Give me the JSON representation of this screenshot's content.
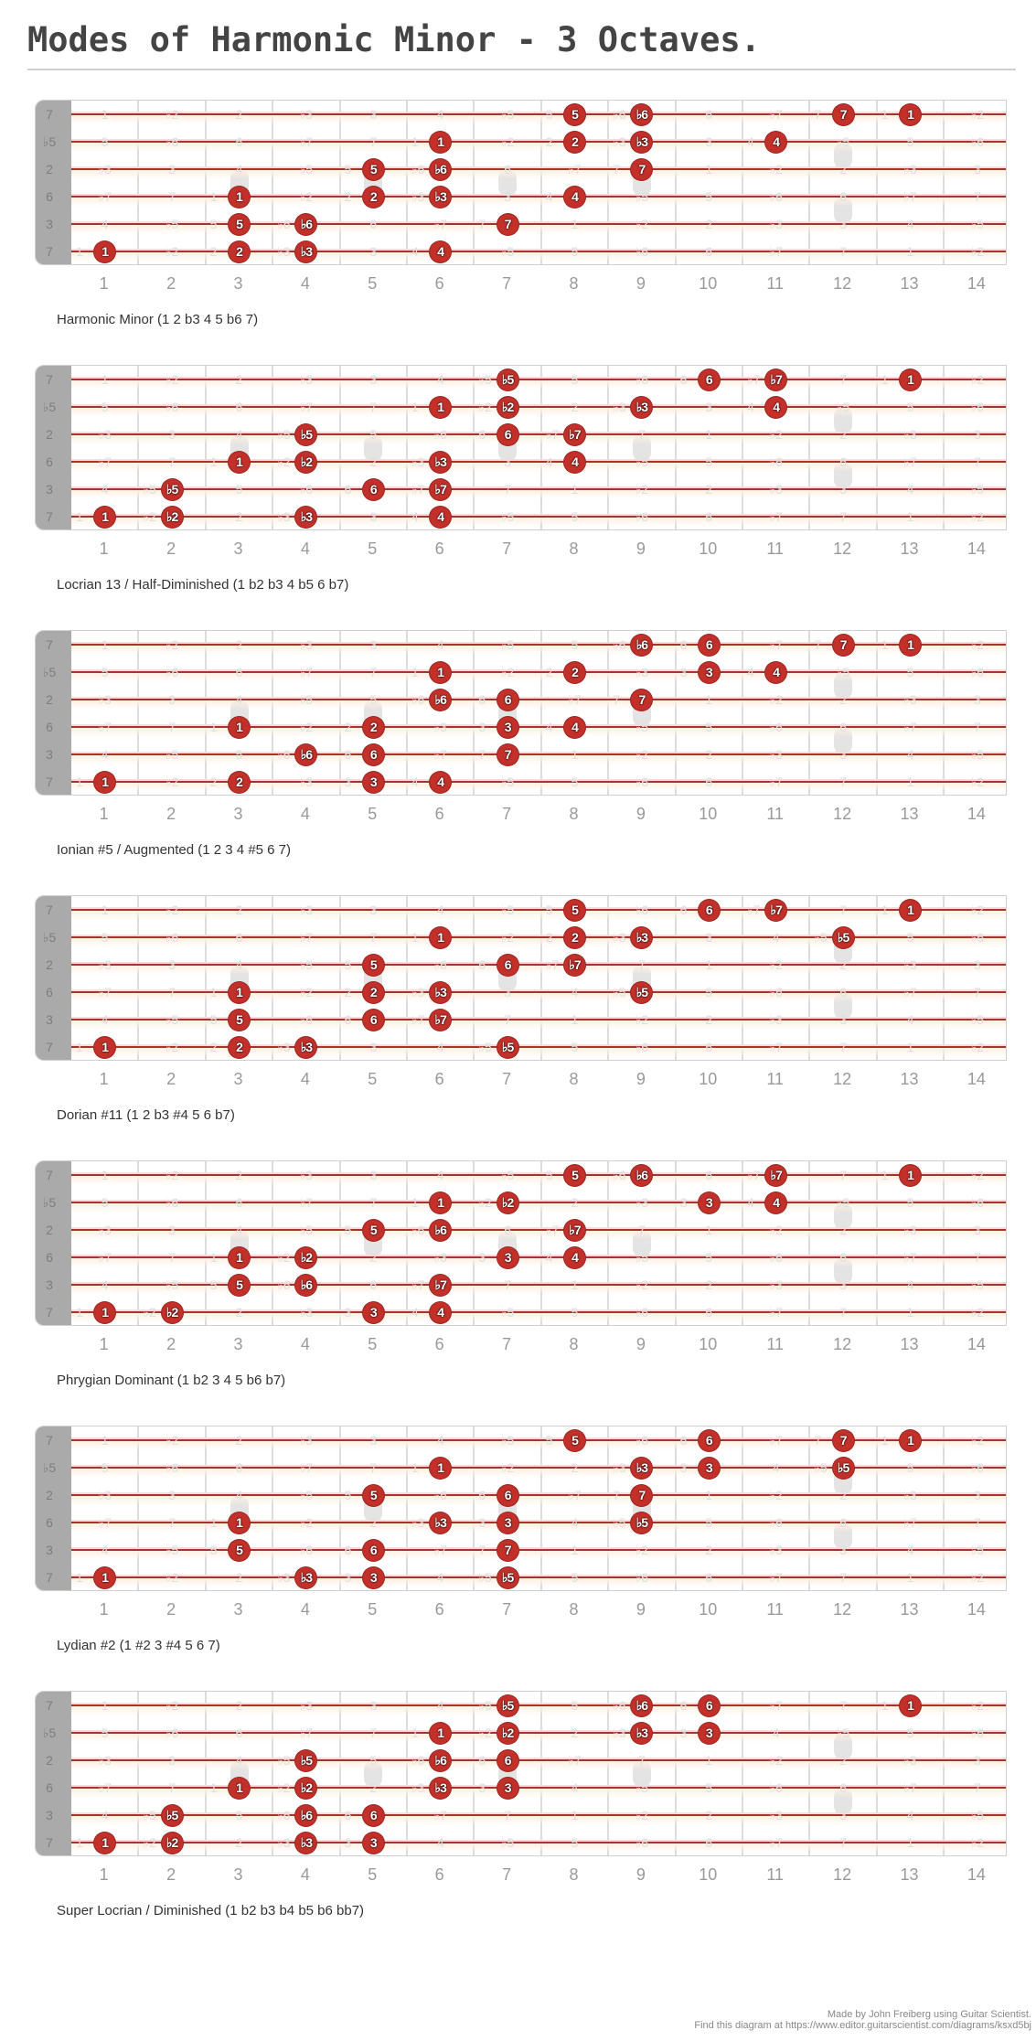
{
  "title": "Modes of Harmonic Minor - 3 Octaves.",
  "colors": {
    "dot": "#c3302a",
    "string": "#a8322c",
    "nut": "#aaaaaa",
    "fret": "#dcdcdc"
  },
  "nut_labels": [
    "7",
    "♭5",
    "2",
    "6",
    "3",
    "7"
  ],
  "fret_numbers": [
    "1",
    "2",
    "3",
    "4",
    "5",
    "6",
    "7",
    "8",
    "9",
    "10",
    "11",
    "12",
    "13",
    "14"
  ],
  "inlay_frets": [
    3,
    5,
    7,
    9,
    12
  ],
  "faint_labels": [
    [
      "1",
      "♭2",
      "2",
      "♭3",
      "3",
      "4",
      "♭5",
      "5",
      "♭6",
      "6",
      "♭7",
      "7",
      "1",
      "♭2"
    ],
    [
      "5",
      "♭6",
      "6",
      "♭7",
      "7",
      "1",
      "♭2",
      "2",
      "♭3",
      "3",
      "4",
      "♭5",
      "5",
      "♭6"
    ],
    [
      "♭3",
      "3",
      "4",
      "♭5",
      "5",
      "♭6",
      "6",
      "♭7",
      "7",
      "1",
      "♭2",
      "2",
      "♭3",
      "3"
    ],
    [
      "♭7",
      "7",
      "1",
      "♭2",
      "2",
      "♭3",
      "3",
      "4",
      "♭5",
      "5",
      "♭6",
      "6",
      "♭7",
      "7"
    ],
    [
      "4",
      "♭5",
      "5",
      "♭6",
      "6",
      "♭7",
      "7",
      "1",
      "♭2",
      "2",
      "♭3",
      "3",
      "4",
      "♭5"
    ],
    [
      "1",
      "♭2",
      "2",
      "♭3",
      "3",
      "4",
      "♭5",
      "5",
      "♭6",
      "6",
      "♭7",
      "7",
      "1",
      "♭2"
    ]
  ],
  "modes": [
    {
      "caption": "Harmonic Minor (1 2 b3 4 5 b6 7)",
      "notes": [
        {
          "s": 1,
          "f": 8,
          "label": "5"
        },
        {
          "s": 1,
          "f": 9,
          "label": "♭6"
        },
        {
          "s": 1,
          "f": 12,
          "label": "7"
        },
        {
          "s": 1,
          "f": 13,
          "label": "1"
        },
        {
          "s": 2,
          "f": 6,
          "label": "1"
        },
        {
          "s": 2,
          "f": 8,
          "label": "2"
        },
        {
          "s": 2,
          "f": 9,
          "label": "♭3"
        },
        {
          "s": 2,
          "f": 11,
          "label": "4"
        },
        {
          "s": 3,
          "f": 5,
          "label": "5"
        },
        {
          "s": 3,
          "f": 6,
          "label": "♭6"
        },
        {
          "s": 3,
          "f": 9,
          "label": "7"
        },
        {
          "s": 4,
          "f": 3,
          "label": "1"
        },
        {
          "s": 4,
          "f": 5,
          "label": "2"
        },
        {
          "s": 4,
          "f": 6,
          "label": "♭3"
        },
        {
          "s": 4,
          "f": 8,
          "label": "4"
        },
        {
          "s": 5,
          "f": 3,
          "label": "5"
        },
        {
          "s": 5,
          "f": 4,
          "label": "♭6"
        },
        {
          "s": 5,
          "f": 7,
          "label": "7"
        },
        {
          "s": 6,
          "f": 1,
          "label": "1"
        },
        {
          "s": 6,
          "f": 3,
          "label": "2"
        },
        {
          "s": 6,
          "f": 4,
          "label": "♭3"
        },
        {
          "s": 6,
          "f": 6,
          "label": "4"
        }
      ]
    },
    {
      "caption": "Locrian 13 / Half-Diminished (1 b2 b3 4 b5 6 b7)",
      "notes": [
        {
          "s": 1,
          "f": 7,
          "label": "♭5"
        },
        {
          "s": 1,
          "f": 10,
          "label": "6"
        },
        {
          "s": 1,
          "f": 11,
          "label": "♭7"
        },
        {
          "s": 1,
          "f": 13,
          "label": "1"
        },
        {
          "s": 2,
          "f": 6,
          "label": "1"
        },
        {
          "s": 2,
          "f": 7,
          "label": "♭2"
        },
        {
          "s": 2,
          "f": 9,
          "label": "♭3"
        },
        {
          "s": 2,
          "f": 11,
          "label": "4"
        },
        {
          "s": 3,
          "f": 4,
          "label": "♭5"
        },
        {
          "s": 3,
          "f": 7,
          "label": "6"
        },
        {
          "s": 3,
          "f": 8,
          "label": "♭7"
        },
        {
          "s": 4,
          "f": 3,
          "label": "1"
        },
        {
          "s": 4,
          "f": 4,
          "label": "♭2"
        },
        {
          "s": 4,
          "f": 6,
          "label": "♭3"
        },
        {
          "s": 4,
          "f": 8,
          "label": "4"
        },
        {
          "s": 5,
          "f": 2,
          "label": "♭5"
        },
        {
          "s": 5,
          "f": 5,
          "label": "6"
        },
        {
          "s": 5,
          "f": 6,
          "label": "♭7"
        },
        {
          "s": 6,
          "f": 1,
          "label": "1"
        },
        {
          "s": 6,
          "f": 2,
          "label": "♭2"
        },
        {
          "s": 6,
          "f": 4,
          "label": "♭3"
        },
        {
          "s": 6,
          "f": 6,
          "label": "4"
        }
      ]
    },
    {
      "caption": "Ionian #5 / Augmented (1 2 3 4 #5 6 7)",
      "notes": [
        {
          "s": 1,
          "f": 9,
          "label": "♭6"
        },
        {
          "s": 1,
          "f": 10,
          "label": "6"
        },
        {
          "s": 1,
          "f": 12,
          "label": "7"
        },
        {
          "s": 1,
          "f": 13,
          "label": "1"
        },
        {
          "s": 2,
          "f": 6,
          "label": "1"
        },
        {
          "s": 2,
          "f": 8,
          "label": "2"
        },
        {
          "s": 2,
          "f": 10,
          "label": "3"
        },
        {
          "s": 2,
          "f": 11,
          "label": "4"
        },
        {
          "s": 3,
          "f": 6,
          "label": "♭6"
        },
        {
          "s": 3,
          "f": 7,
          "label": "6"
        },
        {
          "s": 3,
          "f": 9,
          "label": "7"
        },
        {
          "s": 4,
          "f": 3,
          "label": "1"
        },
        {
          "s": 4,
          "f": 5,
          "label": "2"
        },
        {
          "s": 4,
          "f": 7,
          "label": "3"
        },
        {
          "s": 4,
          "f": 8,
          "label": "4"
        },
        {
          "s": 5,
          "f": 4,
          "label": "♭6"
        },
        {
          "s": 5,
          "f": 5,
          "label": "6"
        },
        {
          "s": 5,
          "f": 7,
          "label": "7"
        },
        {
          "s": 6,
          "f": 1,
          "label": "1"
        },
        {
          "s": 6,
          "f": 3,
          "label": "2"
        },
        {
          "s": 6,
          "f": 5,
          "label": "3"
        },
        {
          "s": 6,
          "f": 6,
          "label": "4"
        }
      ]
    },
    {
      "caption": "Dorian #11 (1 2 b3 #4 5 6 b7)",
      "notes": [
        {
          "s": 1,
          "f": 8,
          "label": "5"
        },
        {
          "s": 1,
          "f": 10,
          "label": "6"
        },
        {
          "s": 1,
          "f": 11,
          "label": "♭7"
        },
        {
          "s": 1,
          "f": 13,
          "label": "1"
        },
        {
          "s": 2,
          "f": 6,
          "label": "1"
        },
        {
          "s": 2,
          "f": 8,
          "label": "2"
        },
        {
          "s": 2,
          "f": 9,
          "label": "♭3"
        },
        {
          "s": 2,
          "f": 12,
          "label": "♭5"
        },
        {
          "s": 3,
          "f": 5,
          "label": "5"
        },
        {
          "s": 3,
          "f": 7,
          "label": "6"
        },
        {
          "s": 3,
          "f": 8,
          "label": "♭7"
        },
        {
          "s": 4,
          "f": 3,
          "label": "1"
        },
        {
          "s": 4,
          "f": 5,
          "label": "2"
        },
        {
          "s": 4,
          "f": 6,
          "label": "♭3"
        },
        {
          "s": 4,
          "f": 9,
          "label": "♭5"
        },
        {
          "s": 5,
          "f": 3,
          "label": "5"
        },
        {
          "s": 5,
          "f": 5,
          "label": "6"
        },
        {
          "s": 5,
          "f": 6,
          "label": "♭7"
        },
        {
          "s": 6,
          "f": 1,
          "label": "1"
        },
        {
          "s": 6,
          "f": 3,
          "label": "2"
        },
        {
          "s": 6,
          "f": 4,
          "label": "♭3"
        },
        {
          "s": 6,
          "f": 7,
          "label": "♭5"
        }
      ]
    },
    {
      "caption": "Phrygian Dominant (1 b2 3 4 5 b6 b7)",
      "notes": [
        {
          "s": 1,
          "f": 8,
          "label": "5"
        },
        {
          "s": 1,
          "f": 9,
          "label": "♭6"
        },
        {
          "s": 1,
          "f": 11,
          "label": "♭7"
        },
        {
          "s": 1,
          "f": 13,
          "label": "1"
        },
        {
          "s": 2,
          "f": 6,
          "label": "1"
        },
        {
          "s": 2,
          "f": 7,
          "label": "♭2"
        },
        {
          "s": 2,
          "f": 10,
          "label": "3"
        },
        {
          "s": 2,
          "f": 11,
          "label": "4"
        },
        {
          "s": 3,
          "f": 5,
          "label": "5"
        },
        {
          "s": 3,
          "f": 6,
          "label": "♭6"
        },
        {
          "s": 3,
          "f": 8,
          "label": "♭7"
        },
        {
          "s": 4,
          "f": 3,
          "label": "1"
        },
        {
          "s": 4,
          "f": 4,
          "label": "♭2"
        },
        {
          "s": 4,
          "f": 7,
          "label": "3"
        },
        {
          "s": 4,
          "f": 8,
          "label": "4"
        },
        {
          "s": 5,
          "f": 3,
          "label": "5"
        },
        {
          "s": 5,
          "f": 4,
          "label": "♭6"
        },
        {
          "s": 5,
          "f": 6,
          "label": "♭7"
        },
        {
          "s": 6,
          "f": 1,
          "label": "1"
        },
        {
          "s": 6,
          "f": 2,
          "label": "♭2"
        },
        {
          "s": 6,
          "f": 5,
          "label": "3"
        },
        {
          "s": 6,
          "f": 6,
          "label": "4"
        }
      ]
    },
    {
      "caption": "Lydian #2 (1 #2 3 #4 5 6 7)",
      "notes": [
        {
          "s": 1,
          "f": 8,
          "label": "5"
        },
        {
          "s": 1,
          "f": 10,
          "label": "6"
        },
        {
          "s": 1,
          "f": 12,
          "label": "7"
        },
        {
          "s": 1,
          "f": 13,
          "label": "1"
        },
        {
          "s": 2,
          "f": 6,
          "label": "1"
        },
        {
          "s": 2,
          "f": 9,
          "label": "♭3"
        },
        {
          "s": 2,
          "f": 10,
          "label": "3"
        },
        {
          "s": 2,
          "f": 12,
          "label": "♭5"
        },
        {
          "s": 3,
          "f": 5,
          "label": "5"
        },
        {
          "s": 3,
          "f": 7,
          "label": "6"
        },
        {
          "s": 3,
          "f": 9,
          "label": "7"
        },
        {
          "s": 4,
          "f": 3,
          "label": "1"
        },
        {
          "s": 4,
          "f": 6,
          "label": "♭3"
        },
        {
          "s": 4,
          "f": 7,
          "label": "3"
        },
        {
          "s": 4,
          "f": 9,
          "label": "♭5"
        },
        {
          "s": 5,
          "f": 3,
          "label": "5"
        },
        {
          "s": 5,
          "f": 5,
          "label": "6"
        },
        {
          "s": 5,
          "f": 7,
          "label": "7"
        },
        {
          "s": 6,
          "f": 1,
          "label": "1"
        },
        {
          "s": 6,
          "f": 4,
          "label": "♭3"
        },
        {
          "s": 6,
          "f": 5,
          "label": "3"
        },
        {
          "s": 6,
          "f": 7,
          "label": "♭5"
        }
      ]
    },
    {
      "caption": "Super Locrian /  Diminished (1 b2 b3 b4 b5 b6 bb7)",
      "notes": [
        {
          "s": 1,
          "f": 7,
          "label": "♭5"
        },
        {
          "s": 1,
          "f": 9,
          "label": "♭6"
        },
        {
          "s": 1,
          "f": 10,
          "label": "6"
        },
        {
          "s": 1,
          "f": 13,
          "label": "1"
        },
        {
          "s": 2,
          "f": 6,
          "label": "1"
        },
        {
          "s": 2,
          "f": 7,
          "label": "♭2"
        },
        {
          "s": 2,
          "f": 9,
          "label": "♭3"
        },
        {
          "s": 2,
          "f": 10,
          "label": "3"
        },
        {
          "s": 3,
          "f": 4,
          "label": "♭5"
        },
        {
          "s": 3,
          "f": 6,
          "label": "♭6"
        },
        {
          "s": 3,
          "f": 7,
          "label": "6"
        },
        {
          "s": 4,
          "f": 3,
          "label": "1"
        },
        {
          "s": 4,
          "f": 4,
          "label": "♭2"
        },
        {
          "s": 4,
          "f": 6,
          "label": "♭3"
        },
        {
          "s": 4,
          "f": 7,
          "label": "3"
        },
        {
          "s": 5,
          "f": 2,
          "label": "♭5"
        },
        {
          "s": 5,
          "f": 4,
          "label": "♭6"
        },
        {
          "s": 5,
          "f": 5,
          "label": "6"
        },
        {
          "s": 6,
          "f": 1,
          "label": "1"
        },
        {
          "s": 6,
          "f": 2,
          "label": "♭2"
        },
        {
          "s": 6,
          "f": 4,
          "label": "♭3"
        },
        {
          "s": 6,
          "f": 5,
          "label": "3"
        }
      ]
    }
  ],
  "footer": {
    "line1": "Made by John Freiberg using Guitar Scientist.",
    "line2": "Find this diagram at https://www.editor.guitarscientist.com/diagrams/ksxd5bj"
  }
}
